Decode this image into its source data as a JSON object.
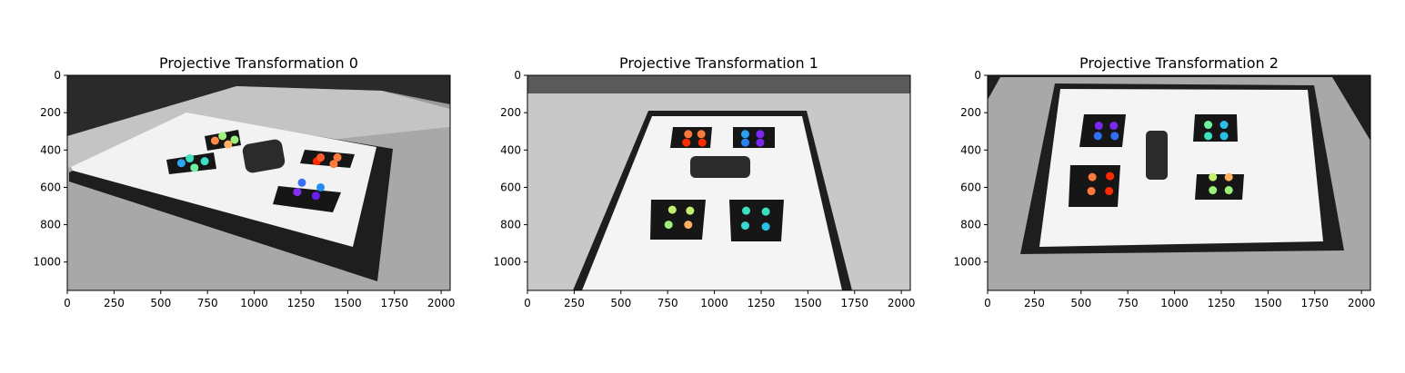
{
  "figure": {
    "panels": [
      {
        "title": "Projective Transformation 0"
      },
      {
        "title": "Projective Transformation 1"
      },
      {
        "title": "Projective Transformation 2"
      }
    ]
  },
  "chart_data": [
    {
      "type": "scatter",
      "title": "Projective Transformation 0",
      "xlim": [
        0,
        2048
      ],
      "ylim": [
        1152,
        0
      ],
      "xticks": [
        0,
        250,
        500,
        750,
        1000,
        1250,
        1500,
        1750,
        2000
      ],
      "yticks": [
        0,
        200,
        400,
        600,
        800,
        1000
      ],
      "background": "grayscale photo: tilted white board with four black cross markers and a black object",
      "colormap": "rainbow",
      "points": [
        {
          "x": 790,
          "y": 350,
          "color": "#ff8a45"
        },
        {
          "x": 830,
          "y": 325,
          "color": "#9cf27a"
        },
        {
          "x": 895,
          "y": 345,
          "color": "#9cf27a"
        },
        {
          "x": 860,
          "y": 370,
          "color": "#ffb060"
        },
        {
          "x": 610,
          "y": 470,
          "color": "#2aa8f0"
        },
        {
          "x": 655,
          "y": 445,
          "color": "#3ae0c0"
        },
        {
          "x": 735,
          "y": 460,
          "color": "#3ae0c0"
        },
        {
          "x": 680,
          "y": 495,
          "color": "#6ef2a0"
        },
        {
          "x": 1335,
          "y": 460,
          "color": "#ff2a00"
        },
        {
          "x": 1355,
          "y": 440,
          "color": "#ff5a28"
        },
        {
          "x": 1445,
          "y": 440,
          "color": "#ff7a3a"
        },
        {
          "x": 1425,
          "y": 475,
          "color": "#ff7a3a"
        },
        {
          "x": 1230,
          "y": 625,
          "color": "#8030f5"
        },
        {
          "x": 1255,
          "y": 575,
          "color": "#3870f5"
        },
        {
          "x": 1355,
          "y": 600,
          "color": "#2090f0"
        },
        {
          "x": 1330,
          "y": 645,
          "color": "#6a1ef0"
        }
      ]
    },
    {
      "type": "scatter",
      "title": "Projective Transformation 1",
      "xlim": [
        0,
        2048
      ],
      "ylim": [
        1152,
        0
      ],
      "xticks": [
        0,
        250,
        500,
        750,
        1000,
        1250,
        1500,
        1750,
        2000
      ],
      "yticks": [
        0,
        200,
        400,
        600,
        800,
        1000
      ],
      "background": "grayscale photo: white board in perspective with four black cross markers and a black object",
      "colormap": "rainbow",
      "points": [
        {
          "x": 850,
          "y": 360,
          "color": "#ff2a00"
        },
        {
          "x": 860,
          "y": 315,
          "color": "#ff7a3a"
        },
        {
          "x": 930,
          "y": 315,
          "color": "#ff7a3a"
        },
        {
          "x": 935,
          "y": 360,
          "color": "#ff2a00"
        },
        {
          "x": 1165,
          "y": 360,
          "color": "#2a80f5"
        },
        {
          "x": 1165,
          "y": 315,
          "color": "#2aa0f0"
        },
        {
          "x": 1245,
          "y": 315,
          "color": "#7a28f0"
        },
        {
          "x": 1245,
          "y": 360,
          "color": "#7a28f0"
        },
        {
          "x": 755,
          "y": 800,
          "color": "#9cf27a"
        },
        {
          "x": 775,
          "y": 720,
          "color": "#c4f070"
        },
        {
          "x": 870,
          "y": 725,
          "color": "#c4f070"
        },
        {
          "x": 860,
          "y": 800,
          "color": "#ffb060"
        },
        {
          "x": 1165,
          "y": 805,
          "color": "#3ad6d6"
        },
        {
          "x": 1170,
          "y": 725,
          "color": "#3ae0c0"
        },
        {
          "x": 1275,
          "y": 730,
          "color": "#3ae0c0"
        },
        {
          "x": 1275,
          "y": 810,
          "color": "#2ac0e8"
        }
      ]
    },
    {
      "type": "scatter",
      "title": "Projective Transformation 2",
      "xlim": [
        0,
        2048
      ],
      "ylim": [
        1152,
        0
      ],
      "xticks": [
        0,
        250,
        500,
        750,
        1000,
        1250,
        1500,
        1750,
        2000
      ],
      "yticks": [
        0,
        200,
        400,
        600,
        800,
        1000
      ],
      "background": "grayscale photo: white board viewed nearly head-on with four black cross markers and a black object",
      "colormap": "rainbow",
      "points": [
        {
          "x": 595,
          "y": 270,
          "color": "#7a28f0"
        },
        {
          "x": 675,
          "y": 270,
          "color": "#7a28f0"
        },
        {
          "x": 590,
          "y": 325,
          "color": "#3070f5"
        },
        {
          "x": 680,
          "y": 325,
          "color": "#3070f5"
        },
        {
          "x": 1180,
          "y": 265,
          "color": "#6ef2a0"
        },
        {
          "x": 1265,
          "y": 265,
          "color": "#2ac0e8"
        },
        {
          "x": 1180,
          "y": 325,
          "color": "#3ae0c0"
        },
        {
          "x": 1265,
          "y": 325,
          "color": "#2ac0e8"
        },
        {
          "x": 560,
          "y": 545,
          "color": "#ff7a3a"
        },
        {
          "x": 655,
          "y": 540,
          "color": "#ff2a00"
        },
        {
          "x": 555,
          "y": 620,
          "color": "#ff7a3a"
        },
        {
          "x": 650,
          "y": 620,
          "color": "#ff2a00"
        },
        {
          "x": 1205,
          "y": 545,
          "color": "#c4f070"
        },
        {
          "x": 1290,
          "y": 545,
          "color": "#ffb060"
        },
        {
          "x": 1205,
          "y": 615,
          "color": "#9cf27a"
        },
        {
          "x": 1290,
          "y": 615,
          "color": "#9cf27a"
        }
      ]
    }
  ]
}
